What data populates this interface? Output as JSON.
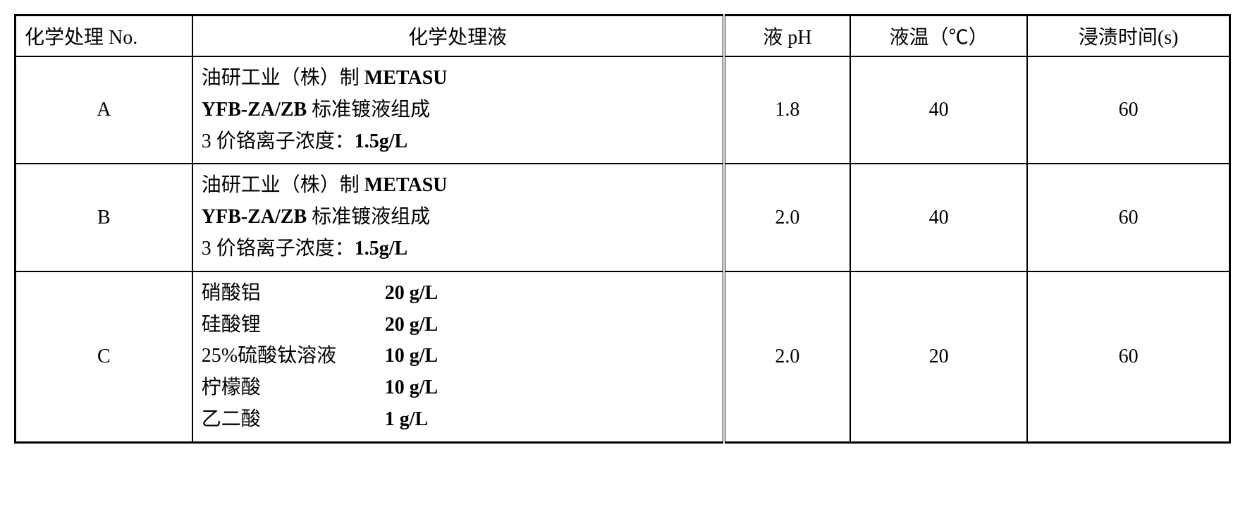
{
  "table": {
    "headers": {
      "no": "化学处理 No.",
      "liquid": "化学处理液",
      "ph": "液 pH",
      "temp": "液温（℃）",
      "time": "浸渍时间(s)"
    },
    "rows": [
      {
        "no": "A",
        "liquid_line1_prefix": "油研工业（株）制 ",
        "liquid_line1_bold": "METASU",
        "liquid_line2_bold": "YFB-ZA/ZB ",
        "liquid_line2_suffix": "标准镀液组成",
        "liquid_line3_prefix": "3 价铬离子浓度：",
        "liquid_line3_bold": "1.5g/L",
        "ph": "1.8",
        "temp": "40",
        "time": "60"
      },
      {
        "no": "B",
        "liquid_line1_prefix": "油研工业（株）制 ",
        "liquid_line1_bold": "METASU",
        "liquid_line2_bold": "YFB-ZA/ZB ",
        "liquid_line2_suffix": "标准镀液组成",
        "liquid_line3_prefix": "3 价铬离子浓度：",
        "liquid_line3_bold": "1.5g/L",
        "ph": "2.0",
        "temp": "40",
        "time": "60"
      },
      {
        "no": "C",
        "components": [
          {
            "name": "硝酸铝",
            "value": "20 g/L"
          },
          {
            "name": "硅酸锂",
            "value": "20 g/L"
          },
          {
            "name": "25%硫酸钛溶液",
            "value": "10 g/L"
          },
          {
            "name": "柠檬酸",
            "value": "10 g/L"
          },
          {
            "name": "乙二酸",
            "value": "1 g/L"
          }
        ],
        "ph": "2.0",
        "temp": "20",
        "time": "60"
      }
    ]
  },
  "styling": {
    "border_color": "#000000",
    "background_color": "#ffffff",
    "font_family": "SimSun",
    "font_size": 28,
    "outer_border_width": 3,
    "inner_border_width": 2
  }
}
